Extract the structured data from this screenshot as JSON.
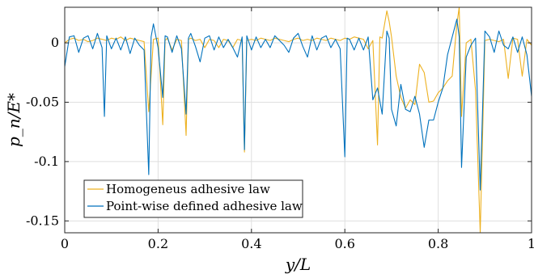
{
  "chart_data": {
    "type": "line",
    "xlabel": "y/L",
    "ylabel": "p_n/E*",
    "xlim": [
      0,
      1
    ],
    "ylim": [
      -0.16,
      0.03
    ],
    "xticks": [
      0,
      0.2,
      0.4,
      0.6,
      0.8,
      1
    ],
    "xtick_labels": [
      "0",
      "0.2",
      "0.4",
      "0.6",
      "0.8",
      "1"
    ],
    "yticks": [
      -0.15,
      -0.1,
      -0.05,
      0
    ],
    "ytick_labels": [
      "-0.15",
      "-0.1",
      "-0.05",
      "0"
    ],
    "grid": true,
    "legend_position": "bottom-left",
    "series": [
      {
        "name": "Homogeneus adhesive law",
        "color": "#EDB120",
        "x": [
          0.0,
          0.01,
          0.02,
          0.03,
          0.04,
          0.05,
          0.06,
          0.07,
          0.08,
          0.09,
          0.1,
          0.11,
          0.12,
          0.13,
          0.14,
          0.15,
          0.16,
          0.17,
          0.18,
          0.19,
          0.2,
          0.21,
          0.215,
          0.22,
          0.23,
          0.24,
          0.25,
          0.26,
          0.265,
          0.27,
          0.28,
          0.29,
          0.3,
          0.31,
          0.32,
          0.33,
          0.34,
          0.35,
          0.36,
          0.37,
          0.38,
          0.385,
          0.39,
          0.4,
          0.41,
          0.42,
          0.43,
          0.44,
          0.45,
          0.46,
          0.47,
          0.48,
          0.49,
          0.5,
          0.51,
          0.52,
          0.53,
          0.54,
          0.55,
          0.56,
          0.57,
          0.58,
          0.59,
          0.6,
          0.61,
          0.62,
          0.63,
          0.64,
          0.65,
          0.66,
          0.67,
          0.675,
          0.68,
          0.69,
          0.695,
          0.7,
          0.71,
          0.72,
          0.73,
          0.74,
          0.75,
          0.76,
          0.77,
          0.78,
          0.79,
          0.8,
          0.81,
          0.82,
          0.83,
          0.84,
          0.845,
          0.85,
          0.86,
          0.87,
          0.88,
          0.89,
          0.9,
          0.91,
          0.92,
          0.93,
          0.94,
          0.95,
          0.96,
          0.97,
          0.98,
          0.99,
          1.0
        ],
        "y": [
          0.0,
          0.003,
          0.004,
          0.002,
          0.003,
          0.001,
          0.002,
          0.004,
          0.003,
          0.002,
          0.004,
          0.003,
          0.005,
          0.002,
          0.004,
          0.003,
          0.002,
          0.001,
          -0.058,
          0.003,
          0.004,
          -0.069,
          0.002,
          0.004,
          -0.006,
          0.003,
          0.002,
          -0.078,
          0.003,
          0.004,
          0.002,
          0.003,
          -0.004,
          0.003,
          0.002,
          -0.004,
          0.003,
          0.002,
          -0.004,
          0.003,
          0.002,
          -0.092,
          0.002,
          0.003,
          0.002,
          0.004,
          0.003,
          0.002,
          0.004,
          0.003,
          0.002,
          0.001,
          0.003,
          0.004,
          0.002,
          0.003,
          0.002,
          0.004,
          0.003,
          0.002,
          0.004,
          0.003,
          0.002,
          0.004,
          0.003,
          0.005,
          0.004,
          0.003,
          -0.005,
          0.002,
          -0.086,
          0.005,
          0.004,
          0.027,
          0.018,
          0.005,
          -0.028,
          -0.046,
          -0.055,
          -0.048,
          -0.052,
          -0.018,
          -0.025,
          -0.05,
          -0.049,
          -0.042,
          -0.038,
          -0.032,
          -0.028,
          0.016,
          0.03,
          -0.062,
          0.0,
          0.003,
          -0.04,
          -0.16,
          0.002,
          0.003,
          0.002,
          0.001,
          0.003,
          -0.03,
          0.004,
          0.003,
          -0.028,
          0.003,
          -0.002
        ]
      },
      {
        "name": "Point-wise defined adhesive law",
        "color": "#0072BD",
        "x": [
          0.0,
          0.01,
          0.02,
          0.03,
          0.04,
          0.05,
          0.06,
          0.07,
          0.08,
          0.085,
          0.09,
          0.1,
          0.11,
          0.12,
          0.13,
          0.14,
          0.15,
          0.16,
          0.17,
          0.18,
          0.185,
          0.19,
          0.2,
          0.21,
          0.215,
          0.22,
          0.23,
          0.24,
          0.25,
          0.26,
          0.265,
          0.27,
          0.28,
          0.29,
          0.3,
          0.31,
          0.32,
          0.33,
          0.34,
          0.35,
          0.36,
          0.37,
          0.38,
          0.385,
          0.39,
          0.4,
          0.41,
          0.42,
          0.43,
          0.44,
          0.45,
          0.46,
          0.47,
          0.48,
          0.49,
          0.5,
          0.51,
          0.52,
          0.53,
          0.54,
          0.55,
          0.56,
          0.57,
          0.58,
          0.59,
          0.6,
          0.605,
          0.61,
          0.62,
          0.63,
          0.64,
          0.65,
          0.66,
          0.67,
          0.68,
          0.69,
          0.695,
          0.7,
          0.71,
          0.72,
          0.73,
          0.74,
          0.75,
          0.76,
          0.77,
          0.78,
          0.79,
          0.8,
          0.81,
          0.82,
          0.83,
          0.84,
          0.845,
          0.85,
          0.86,
          0.87,
          0.88,
          0.89,
          0.9,
          0.91,
          0.92,
          0.93,
          0.94,
          0.95,
          0.96,
          0.97,
          0.98,
          0.99,
          1.0
        ],
        "y": [
          -0.02,
          0.005,
          0.006,
          -0.008,
          0.004,
          0.006,
          -0.005,
          0.008,
          -0.004,
          -0.062,
          0.006,
          -0.005,
          0.004,
          -0.006,
          0.005,
          -0.009,
          0.004,
          -0.002,
          -0.006,
          -0.111,
          0.005,
          0.016,
          -0.004,
          -0.046,
          0.006,
          0.005,
          -0.008,
          0.006,
          -0.005,
          -0.06,
          0.004,
          0.008,
          -0.003,
          -0.016,
          0.004,
          0.006,
          -0.006,
          0.005,
          -0.004,
          0.003,
          -0.004,
          -0.012,
          0.005,
          -0.09,
          0.006,
          -0.006,
          0.005,
          -0.004,
          0.003,
          -0.004,
          0.006,
          0.002,
          -0.002,
          -0.008,
          0.004,
          0.008,
          -0.003,
          -0.012,
          0.006,
          -0.006,
          0.004,
          0.006,
          -0.004,
          0.003,
          -0.005,
          -0.096,
          0.004,
          0.003,
          -0.006,
          0.004,
          -0.006,
          0.005,
          -0.048,
          -0.038,
          -0.06,
          0.01,
          0.004,
          -0.056,
          -0.07,
          -0.035,
          -0.056,
          -0.058,
          -0.045,
          -0.06,
          -0.088,
          -0.065,
          -0.065,
          -0.05,
          -0.038,
          -0.01,
          0.005,
          0.02,
          0.005,
          -0.105,
          -0.012,
          -0.002,
          0.004,
          -0.124,
          0.01,
          0.005,
          -0.008,
          0.01,
          -0.002,
          -0.005,
          0.005,
          -0.008,
          0.005,
          -0.01,
          -0.045
        ]
      }
    ]
  }
}
